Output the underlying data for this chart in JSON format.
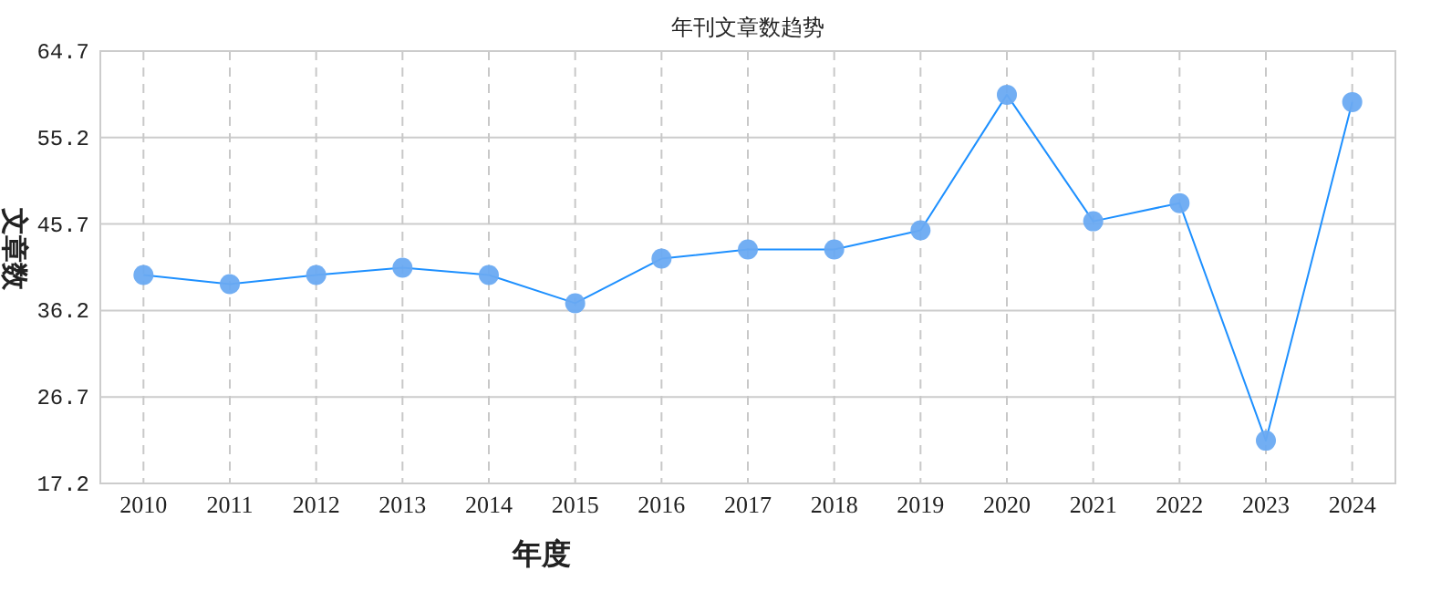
{
  "chart_data": {
    "type": "line",
    "title": "年刊文章数趋势",
    "xlabel": "年度",
    "ylabel": "文章数",
    "categories": [
      "2010",
      "2011",
      "2012",
      "2013",
      "2014",
      "2015",
      "2016",
      "2017",
      "2018",
      "2019",
      "2020",
      "2021",
      "2022",
      "2023",
      "2024"
    ],
    "series": [
      {
        "color": "#1e90ff",
        "values": [
          40.1,
          39.1,
          40.1,
          40.9,
          40.1,
          37.0,
          41.9,
          42.9,
          42.9,
          45.0,
          59.9,
          46.0,
          48.0,
          21.9,
          59.1
        ]
      }
    ],
    "ylim": [
      17.2,
      64.7
    ],
    "yticks": [
      {
        "value": 17.2,
        "label": "17.2"
      },
      {
        "value": 26.7,
        "label": "26.7"
      },
      {
        "value": 36.2,
        "label": "36.2"
      },
      {
        "value": 45.7,
        "label": "45.7"
      },
      {
        "value": 55.2,
        "label": "55.2"
      },
      {
        "value": 64.7,
        "label": "64.7"
      }
    ],
    "grid": true,
    "marker": "circle",
    "line_style": "solid"
  }
}
